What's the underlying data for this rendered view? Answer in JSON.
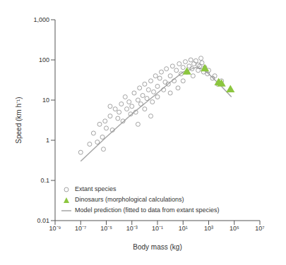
{
  "chart_data": {
    "type": "scatter",
    "x_label": "Body mass (kg)",
    "y_label": "Speed (km h⁻¹)",
    "log": true,
    "grid": false,
    "legend": "lower left",
    "xlim": [
      1e-09,
      10000000.0
    ],
    "xticks": [
      {
        "value": 1e-09,
        "label": "10⁻⁹"
      },
      {
        "value": 1e-07,
        "label": "10⁻⁷"
      },
      {
        "value": 1e-05,
        "label": "10⁻⁵"
      },
      {
        "value": 0.001,
        "label": "10⁻³"
      },
      {
        "value": 0.1,
        "label": "10⁻¹"
      },
      {
        "value": 10,
        "label": "10¹"
      },
      {
        "value": 1000,
        "label": "10³"
      },
      {
        "value": 100000,
        "label": "10⁵"
      },
      {
        "value": 10000000,
        "label": "10⁷"
      }
    ],
    "ylim": [
      0.01,
      1000
    ],
    "yticks": [
      0.01,
      0.1,
      1,
      10,
      100,
      {
        "value": 1000,
        "label": "1,000"
      }
    ],
    "series": [
      {
        "name": "Extant species",
        "type": "scatter",
        "marker": "open_circle",
        "color": "#8c8c8c",
        "x": [
          1e-07,
          5e-07,
          1e-06,
          2e-06,
          3e-06,
          5e-06,
          8e-06,
          1e-05,
          2e-05,
          3e-05,
          5e-05,
          8e-05,
          0.0001,
          0.00015,
          0.0002,
          0.0003,
          0.0004,
          0.0006,
          0.0008,
          0.001,
          0.0015,
          0.002,
          0.003,
          0.004,
          0.005,
          0.007,
          0.01,
          0.01,
          0.015,
          0.02,
          0.03,
          0.04,
          0.05,
          0.07,
          0.1,
          0.1,
          0.15,
          0.2,
          0.3,
          0.4,
          0.5,
          0.7,
          1,
          1,
          1.5,
          2,
          3,
          4,
          5,
          7,
          10,
          10,
          15,
          20,
          30,
          40,
          50,
          70,
          100,
          150,
          200,
          300,
          400,
          500,
          800,
          1000,
          2000,
          3000,
          5000,
          10000,
          6e-06,
          2e-05,
          0.03,
          0.003,
          60,
          250,
          150
        ],
        "values": [
          0.5,
          0.8,
          1.5,
          0.9,
          2.5,
          1.2,
          3,
          2,
          4,
          1.8,
          6,
          3.5,
          5,
          8,
          3,
          12,
          6,
          9,
          4.5,
          7,
          15,
          5,
          10,
          20,
          8,
          13,
          25,
          6,
          11,
          18,
          30,
          9,
          16,
          40,
          22,
          12,
          35,
          50,
          18,
          28,
          60,
          25,
          40,
          15,
          70,
          30,
          55,
          20,
          80,
          45,
          65,
          30,
          90,
          50,
          70,
          100,
          60,
          80,
          95,
          55,
          70,
          85,
          50,
          65,
          45,
          55,
          35,
          40,
          25,
          30,
          0.6,
          7,
          4,
          2.5,
          40,
          110,
          75
        ]
      },
      {
        "name": "Dinosaurs (morphological calculations)",
        "type": "scatter",
        "marker": "triangle",
        "color": "#8cc63f",
        "x": [
          20,
          500,
          6000,
          10000,
          50000
        ],
        "values": [
          50,
          60,
          27,
          25,
          18
        ]
      },
      {
        "name": "Model prediction (fitted to data from extant species)",
        "type": "line",
        "color": "#a6a6a6",
        "x": [
          1e-07,
          1e-05,
          0.001,
          0.1,
          1,
          10,
          100,
          300,
          1000,
          10000,
          60000
        ],
        "values": [
          0.3,
          1.2,
          4.5,
          15,
          28,
          50,
          65,
          60,
          45,
          22,
          12
        ]
      }
    ]
  }
}
